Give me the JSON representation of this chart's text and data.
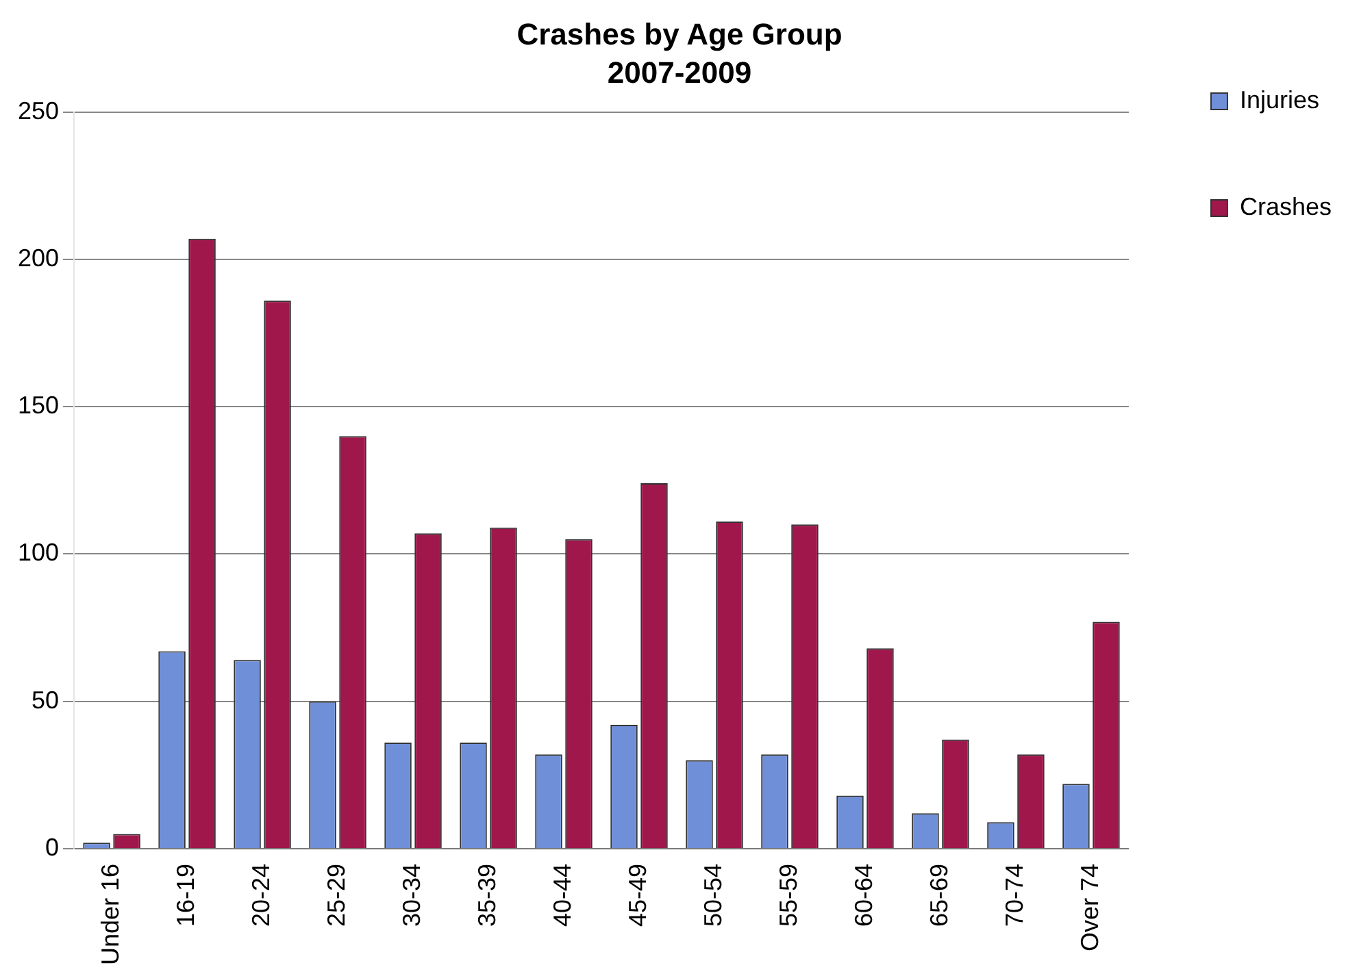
{
  "chart_data": {
    "type": "bar",
    "title": "Crashes by Age Group",
    "subtitle": "2007-2009",
    "categories": [
      "Under 16",
      "16-19",
      "20-24",
      "25-29",
      "30-34",
      "35-39",
      "40-44",
      "45-49",
      "50-54",
      "55-59",
      "60-64",
      "65-69",
      "70-74",
      "Over 74"
    ],
    "series": [
      {
        "name": "Injuries",
        "color": "#6f8fd8",
        "values": [
          2,
          67,
          64,
          50,
          36,
          36,
          32,
          42,
          30,
          32,
          18,
          12,
          9,
          22
        ]
      },
      {
        "name": "Crashes",
        "color": "#a0174c",
        "values": [
          5,
          207,
          186,
          140,
          107,
          109,
          105,
          124,
          111,
          110,
          68,
          37,
          32,
          77
        ]
      }
    ],
    "ylim": [
      0,
      250
    ],
    "yticks": [
      0,
      50,
      100,
      150,
      200,
      250
    ],
    "grid": "y",
    "legend": "right"
  }
}
